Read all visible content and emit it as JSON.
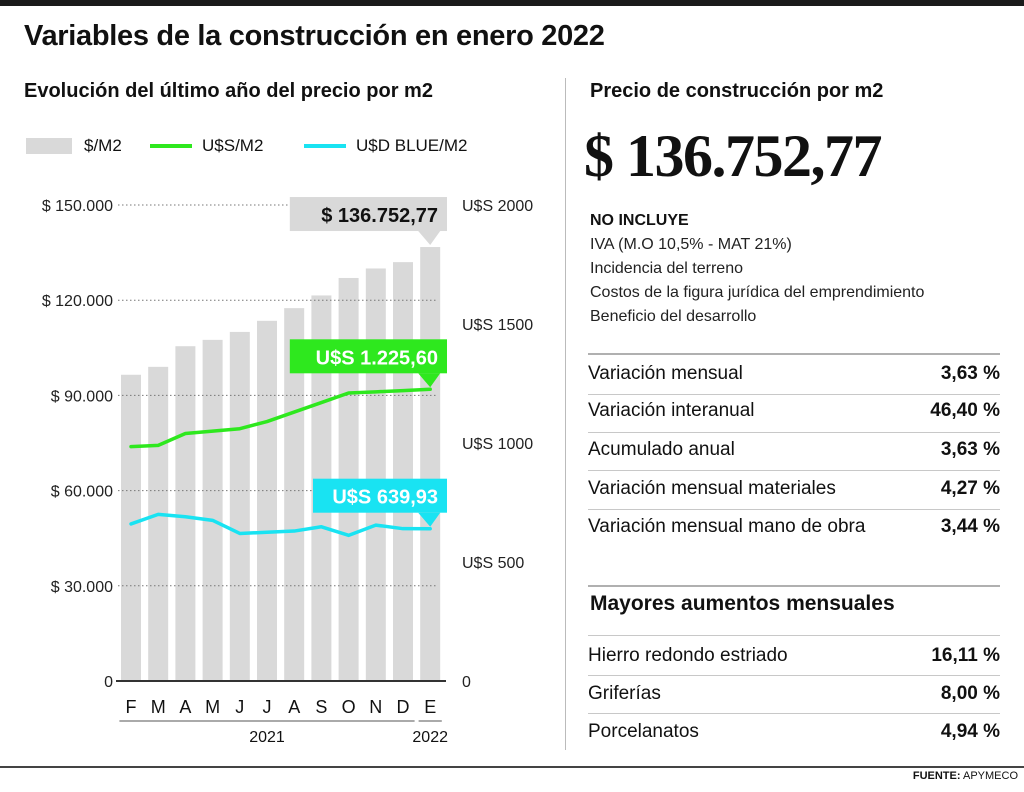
{
  "title": "Variables de la construcción en enero 2022",
  "left_subtitle": "Evolución del último año del precio por m2",
  "right_subtitle": "Precio de construcción por m2",
  "legend": [
    {
      "label": "$/M2",
      "color": "#d9d9d9"
    },
    {
      "label": "U$S/M2",
      "color": "#2ee81e"
    },
    {
      "label": "U$D BLUE/M2",
      "color": "#19e3f2"
    }
  ],
  "chart_data": {
    "type": "bar",
    "categories": [
      "F",
      "M",
      "A",
      "M",
      "J",
      "J",
      "A",
      "S",
      "O",
      "N",
      "D",
      "E"
    ],
    "year_labels": [
      {
        "label": "2021",
        "from": 0,
        "to": 10
      },
      {
        "label": "2022",
        "from": 11,
        "to": 11
      }
    ],
    "series": [
      {
        "name": "$/M2",
        "axis": "left",
        "kind": "bar",
        "color": "#d9d9d9",
        "values": [
          96500,
          99000,
          105500,
          107500,
          110000,
          113500,
          117500,
          121500,
          127000,
          130000,
          132000,
          136752.77
        ]
      },
      {
        "name": "U$S/M2",
        "axis": "right",
        "kind": "line",
        "color": "#2ee81e",
        "values": [
          985,
          990,
          1040,
          1050,
          1060,
          1090,
          1130,
          1170,
          1210,
          1215,
          1220,
          1225.6
        ]
      },
      {
        "name": "U$D BLUE/M2",
        "axis": "right",
        "kind": "line",
        "color": "#19e3f2",
        "values": [
          660,
          700,
          690,
          675,
          620,
          625,
          630,
          648,
          612,
          655,
          640,
          639.93
        ]
      }
    ],
    "y_left": {
      "range": [
        0,
        150000
      ],
      "ticks": [
        "0",
        "$ 30.000",
        "$ 60.000",
        "$ 90.000",
        "$ 120.000",
        "$ 150.000"
      ],
      "tick_values": [
        0,
        30000,
        60000,
        90000,
        120000,
        150000
      ]
    },
    "y_right": {
      "range": [
        0,
        2000
      ],
      "ticks": [
        "0",
        "U$S 500",
        "U$S 1000",
        "U$S 1500",
        "U$S 2000"
      ],
      "tick_values": [
        0,
        500,
        1000,
        1500,
        2000
      ]
    },
    "callouts": [
      {
        "text": "$ 136.752,77",
        "series": 0,
        "index": 11,
        "bg": "#d9d9d9",
        "fg": "#111111"
      },
      {
        "text": "U$S 1.225,60",
        "series": 1,
        "index": 11,
        "bg": "#2ee81e",
        "fg": "#ffffff"
      },
      {
        "text": "U$S 639,93",
        "series": 2,
        "index": 11,
        "bg": "#19e3f2",
        "fg": "#ffffff"
      }
    ],
    "grid": "dotted at left ticks"
  },
  "price": "$ 136.752,77",
  "no_incluye": {
    "title": "NO INCLUYE",
    "items": [
      "IVA (M.O 10,5% - MAT 21%)",
      "Incidencia del terreno",
      "Costos de la figura jurídica del emprendimiento",
      "Beneficio del desarrollo"
    ]
  },
  "variaciones": [
    {
      "label": "Variación mensual",
      "value": "3,63 %"
    },
    {
      "label": "Variación interanual",
      "value": "46,40 %"
    },
    {
      "label": "Acumulado anual",
      "value": "3,63 %"
    },
    {
      "label": "Variación mensual materiales",
      "value": "4,27 %"
    },
    {
      "label": "Variación mensual mano de obra",
      "value": "3,44 %"
    }
  ],
  "mayores": {
    "title": "Mayores aumentos mensuales",
    "items": [
      {
        "label": "Hierro redondo estriado",
        "value": "16,11 %"
      },
      {
        "label": "Griferías",
        "value": "8,00 %"
      },
      {
        "label": "Porcelanatos",
        "value": "4,94 %"
      }
    ]
  },
  "source": {
    "label": "FUENTE:",
    "value": "APYMECO"
  }
}
